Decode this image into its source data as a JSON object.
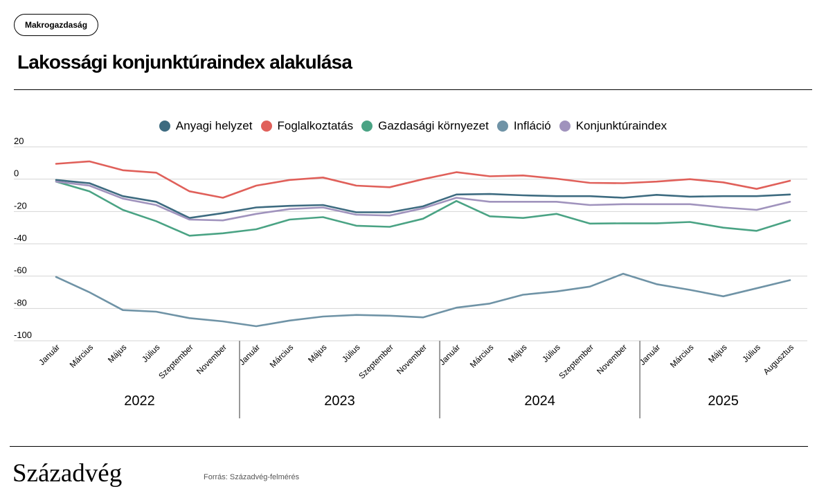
{
  "tag": "Makrogazdaság",
  "title": "Lakossági konjunktúraindex alakulása",
  "brand": "Századvég",
  "source": "Forrás: Századvég-felmérés",
  "chart_data": {
    "type": "line",
    "title": "Lakossági konjunktúraindex alakulása",
    "legend_position": "top-center",
    "grid": true,
    "ylim": [
      -100,
      20
    ],
    "yticks": [
      20,
      0,
      -20,
      -40,
      -60,
      -80,
      -100
    ],
    "ytick_labels": [
      "20",
      "0",
      "-20",
      "-40",
      "-60",
      "-80",
      "-100"
    ],
    "categories": [
      "Január",
      "Március",
      "Május",
      "Július",
      "Szeptember",
      "November",
      "Január",
      "Március",
      "Május",
      "Július",
      "Szeptember",
      "November",
      "Január",
      "Március",
      "Május",
      "Július",
      "Szeptember",
      "November",
      "Január",
      "Március",
      "Május",
      "Július",
      "Augusztus"
    ],
    "year_groups": [
      {
        "label": "2022",
        "start": 0,
        "end": 5
      },
      {
        "label": "2023",
        "start": 6,
        "end": 11
      },
      {
        "label": "2024",
        "start": 12,
        "end": 17
      },
      {
        "label": "2025",
        "start": 18,
        "end": 22
      }
    ],
    "series": [
      {
        "name": "Anyagi helyzet",
        "color": "#3d6b80",
        "values": [
          -0.5,
          -2.5,
          -10.5,
          -14,
          -24,
          -21,
          -17.5,
          -16.5,
          -16,
          -20.5,
          -20.5,
          -16.8,
          -9.5,
          -9.2,
          -10,
          -10.5,
          -10.5,
          -11.5,
          -9.7,
          -10.8,
          -10.5,
          -10.5,
          -9.5
        ]
      },
      {
        "name": "Foglalkoztatás",
        "color": "#e0605a",
        "values": [
          9.5,
          11,
          5.5,
          4,
          -7.5,
          -11.5,
          -4,
          -0.5,
          1,
          -4,
          -5,
          0,
          4.3,
          1.8,
          2.3,
          0.3,
          -2.3,
          -2.5,
          -1.5,
          0,
          -2,
          -6,
          -1
        ]
      },
      {
        "name": "Gazdasági környezet",
        "color": "#4aa384",
        "values": [
          -1.5,
          -7.5,
          -19,
          -26,
          -35,
          -33.5,
          -31,
          -25,
          -23.5,
          -28.8,
          -29.5,
          -24.5,
          -13.5,
          -23,
          -24,
          -21.5,
          -27.5,
          -27.3,
          -27.3,
          -26.5,
          -30,
          -32,
          -25.5
        ]
      },
      {
        "name": "Infláció",
        "color": "#6f93a6",
        "values": [
          -60.5,
          -70,
          -81,
          -82,
          -86,
          -88,
          -91,
          -87.5,
          -85,
          -84,
          -84.5,
          -85.5,
          -79.5,
          -77,
          -71.5,
          -69.5,
          -66.5,
          -58.5,
          -65,
          -68.5,
          -72.5,
          -67.5,
          -62.5
        ]
      },
      {
        "name": "Konjunktúraindex",
        "color": "#a093bd",
        "values": [
          -1.5,
          -4,
          -12,
          -16,
          -25,
          -25.5,
          -21.5,
          -18.5,
          -17.5,
          -22,
          -22.5,
          -18,
          -11.5,
          -14,
          -14,
          -14,
          -16,
          -15.5,
          -15.5,
          -15.5,
          -17.5,
          -19,
          -14
        ]
      }
    ]
  }
}
